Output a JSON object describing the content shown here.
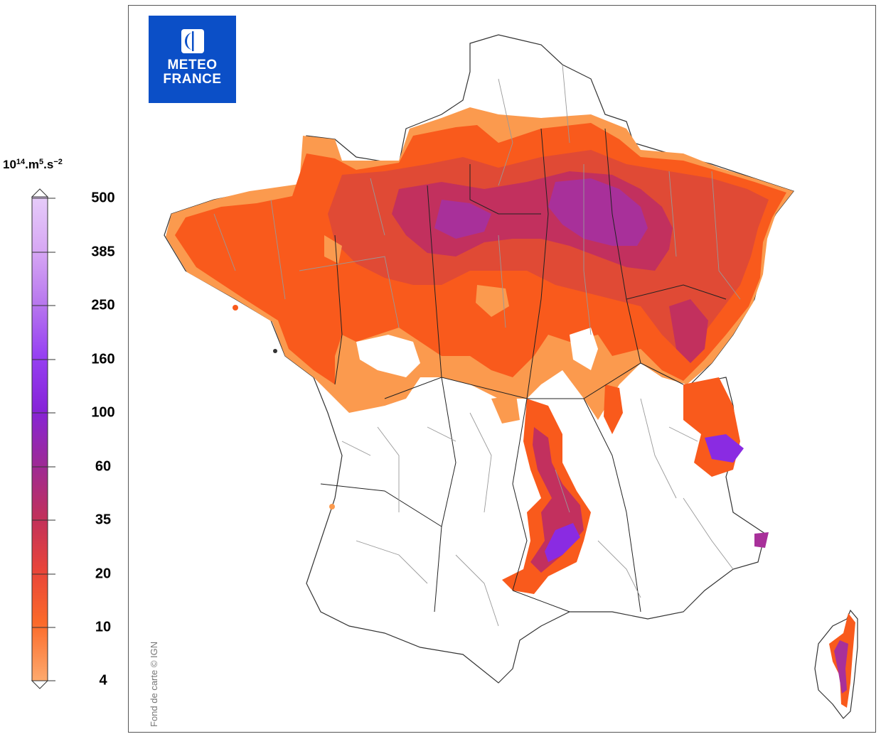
{
  "legend": {
    "unit_base": "10",
    "unit_exp1": "14",
    "unit_mid": ".m",
    "unit_exp2": "5",
    "unit_mid2": ".s",
    "unit_exp3": "−2",
    "ticks": [
      "500",
      "385",
      "250",
      "160",
      "100",
      "60",
      "35",
      "20",
      "10",
      "4"
    ],
    "colors": [
      "#e2c4f7",
      "#c890ee",
      "#a452e6",
      "#8a2bf0",
      "#7a1fb8",
      "#9c2a8a",
      "#c8344a",
      "#f0501e",
      "#fb8a44",
      "#fcb07a"
    ]
  },
  "map": {
    "logo_line1": "METEO",
    "logo_line2": "FRANCE",
    "credit": "Fond de carte © IGN",
    "colors": {
      "c4_10": "#fb9a4e",
      "c10_20": "#f95a1c",
      "c20_35": "#e04a35",
      "c35_60": "#c2305e",
      "c60_100": "#a8309a",
      "c100_160": "#8a2be2",
      "border": "#333333",
      "dept": "#999999"
    }
  }
}
